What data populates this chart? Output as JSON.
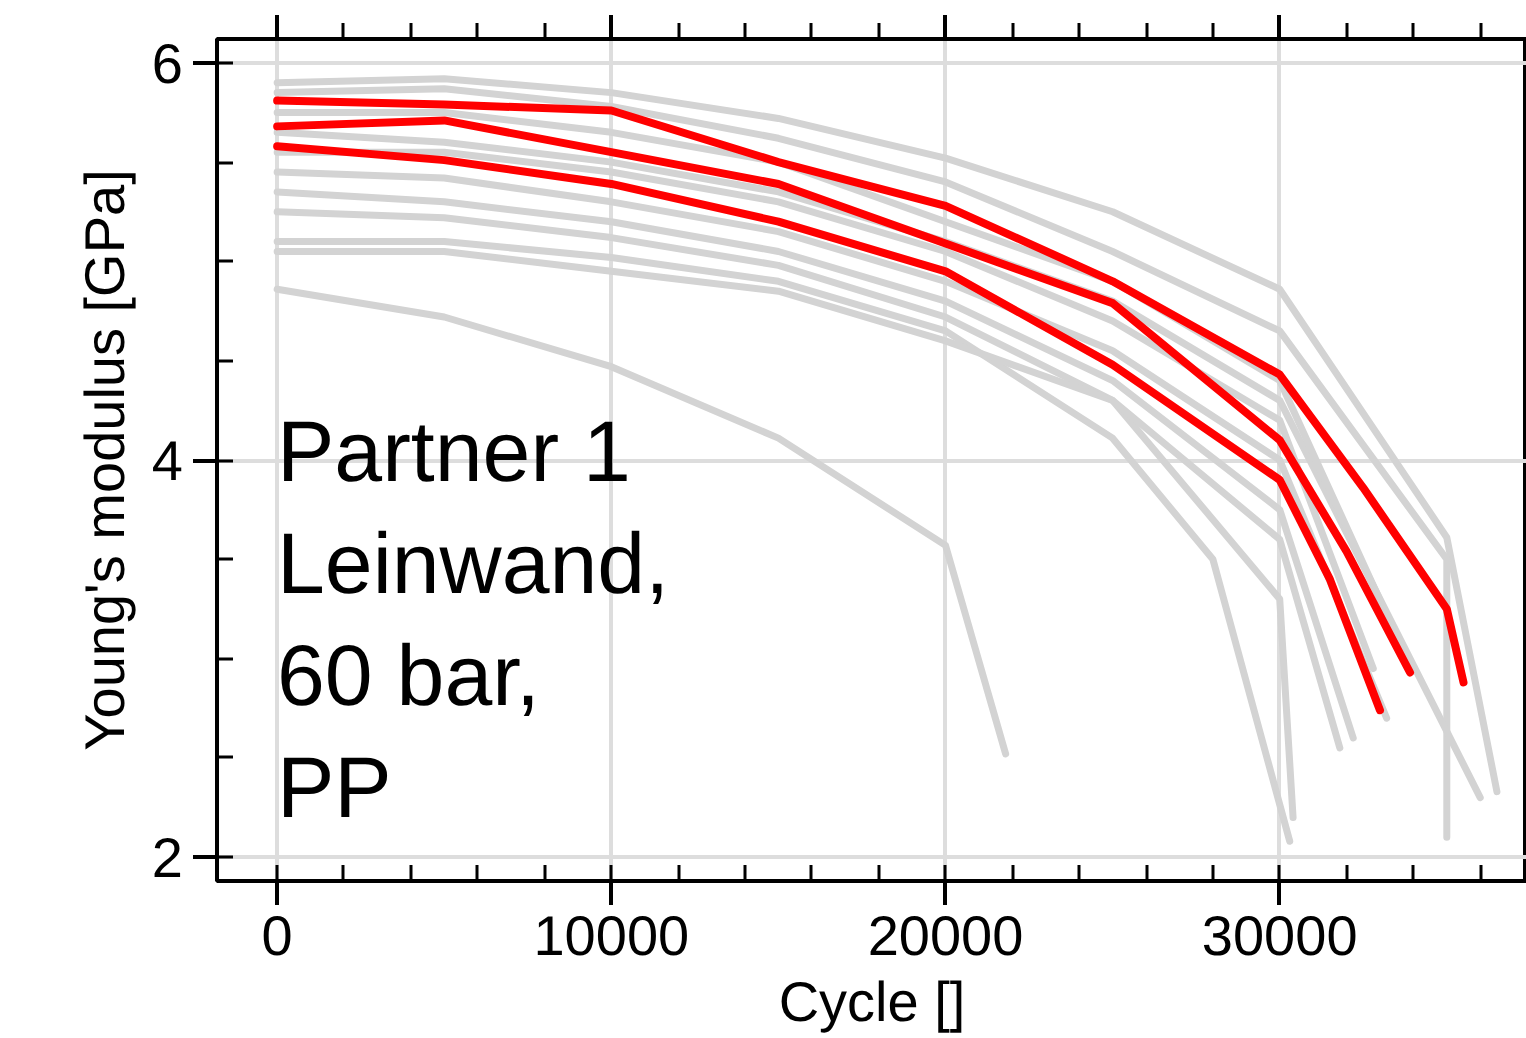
{
  "chart_data": {
    "type": "line",
    "xlabel": "Cycle []",
    "ylabel": "Young's modulus [GPa]",
    "xlim": [
      -1800,
      37400
    ],
    "ylim": [
      1.88,
      6.12
    ],
    "xticks": [
      0,
      10000,
      20000,
      30000
    ],
    "yticks": [
      2,
      4,
      6
    ],
    "grid": true,
    "line_style": "solid",
    "annotations": [
      "Partner 1\nLeinwand,\n60 bar,\nPP"
    ],
    "series": [
      {
        "color": "#d3d3d3",
        "x": [
          0,
          5000,
          10000,
          15000,
          20000,
          25000,
          30000,
          35000,
          36500
        ],
        "values": [
          5.9,
          5.92,
          5.85,
          5.72,
          5.52,
          5.25,
          4.86,
          3.61,
          2.33
        ]
      },
      {
        "color": "#d3d3d3",
        "x": [
          0,
          5000,
          10000,
          15000,
          20000,
          25000,
          30000,
          35000,
          35000
        ],
        "values": [
          5.85,
          5.87,
          5.78,
          5.62,
          5.4,
          5.05,
          4.65,
          3.5,
          2.1
        ]
      },
      {
        "color": "#d3d3d3",
        "x": [
          0,
          5000,
          10000,
          15000,
          20000,
          25000,
          30000,
          36000
        ],
        "values": [
          5.65,
          5.6,
          5.5,
          5.35,
          5.1,
          4.8,
          4.3,
          2.3
        ]
      },
      {
        "color": "#d3d3d3",
        "x": [
          0,
          5000,
          10000,
          15000,
          20000,
          25000,
          30000,
          33800
        ],
        "values": [
          5.75,
          5.75,
          5.65,
          5.5,
          5.2,
          4.9,
          4.4,
          3.0
        ]
      },
      {
        "color": "#d3d3d3",
        "x": [
          0,
          5000,
          10000,
          15000,
          20000,
          25000,
          30000,
          32800
        ],
        "values": [
          5.55,
          5.55,
          5.45,
          5.3,
          5.05,
          4.7,
          4.2,
          2.95
        ]
      },
      {
        "color": "#d3d3d3",
        "x": [
          0,
          5000,
          10000,
          15000,
          20000,
          25000,
          30000,
          33200
        ],
        "values": [
          5.45,
          5.42,
          5.3,
          5.15,
          4.9,
          4.55,
          4.0,
          2.7
        ]
      },
      {
        "color": "#d3d3d3",
        "x": [
          0,
          5000,
          10000,
          15000,
          20000,
          25000,
          30000,
          32200
        ],
        "values": [
          5.35,
          5.3,
          5.2,
          5.05,
          4.8,
          4.4,
          3.75,
          2.6
        ]
      },
      {
        "color": "#d3d3d3",
        "x": [
          0,
          5000,
          10000,
          15000,
          20000,
          25000,
          30000,
          30400
        ],
        "values": [
          5.25,
          5.22,
          5.12,
          4.98,
          4.72,
          4.3,
          3.3,
          2.2
        ]
      },
      {
        "color": "#d3d3d3",
        "x": [
          0,
          5000,
          10000,
          15000,
          20000,
          25000,
          28000,
          30300
        ],
        "values": [
          5.1,
          5.1,
          5.02,
          4.9,
          4.65,
          4.11,
          3.5,
          2.08
        ]
      },
      {
        "color": "#d3d3d3",
        "x": [
          0,
          5000,
          10000,
          15000,
          20000,
          25000,
          30000,
          31800
        ],
        "values": [
          5.05,
          5.05,
          4.95,
          4.85,
          4.6,
          4.3,
          3.6,
          2.55
        ]
      },
      {
        "color": "#d3d3d3",
        "x": [
          0,
          5000,
          10000,
          15000,
          20000,
          21800
        ],
        "values": [
          4.86,
          4.72,
          4.47,
          4.11,
          3.57,
          2.52
        ]
      },
      {
        "color": "#ff0000",
        "x": [
          0,
          5000,
          10000,
          15000,
          20000,
          25000,
          30000,
          32500,
          35000,
          35500
        ],
        "values": [
          5.81,
          5.79,
          5.76,
          5.5,
          5.28,
          4.9,
          4.43,
          3.86,
          3.25,
          2.88
        ]
      },
      {
        "color": "#ff0000",
        "x": [
          0,
          5000,
          10000,
          15000,
          20000,
          25000,
          30000,
          32000,
          33900
        ],
        "values": [
          5.68,
          5.71,
          5.55,
          5.39,
          5.09,
          4.79,
          4.1,
          3.54,
          2.93
        ]
      },
      {
        "color": "#ff0000",
        "x": [
          0,
          5000,
          10000,
          15000,
          20000,
          25000,
          30000,
          31500,
          33000
        ],
        "values": [
          5.58,
          5.51,
          5.39,
          5.2,
          4.95,
          4.48,
          3.9,
          3.4,
          2.74
        ]
      }
    ]
  }
}
